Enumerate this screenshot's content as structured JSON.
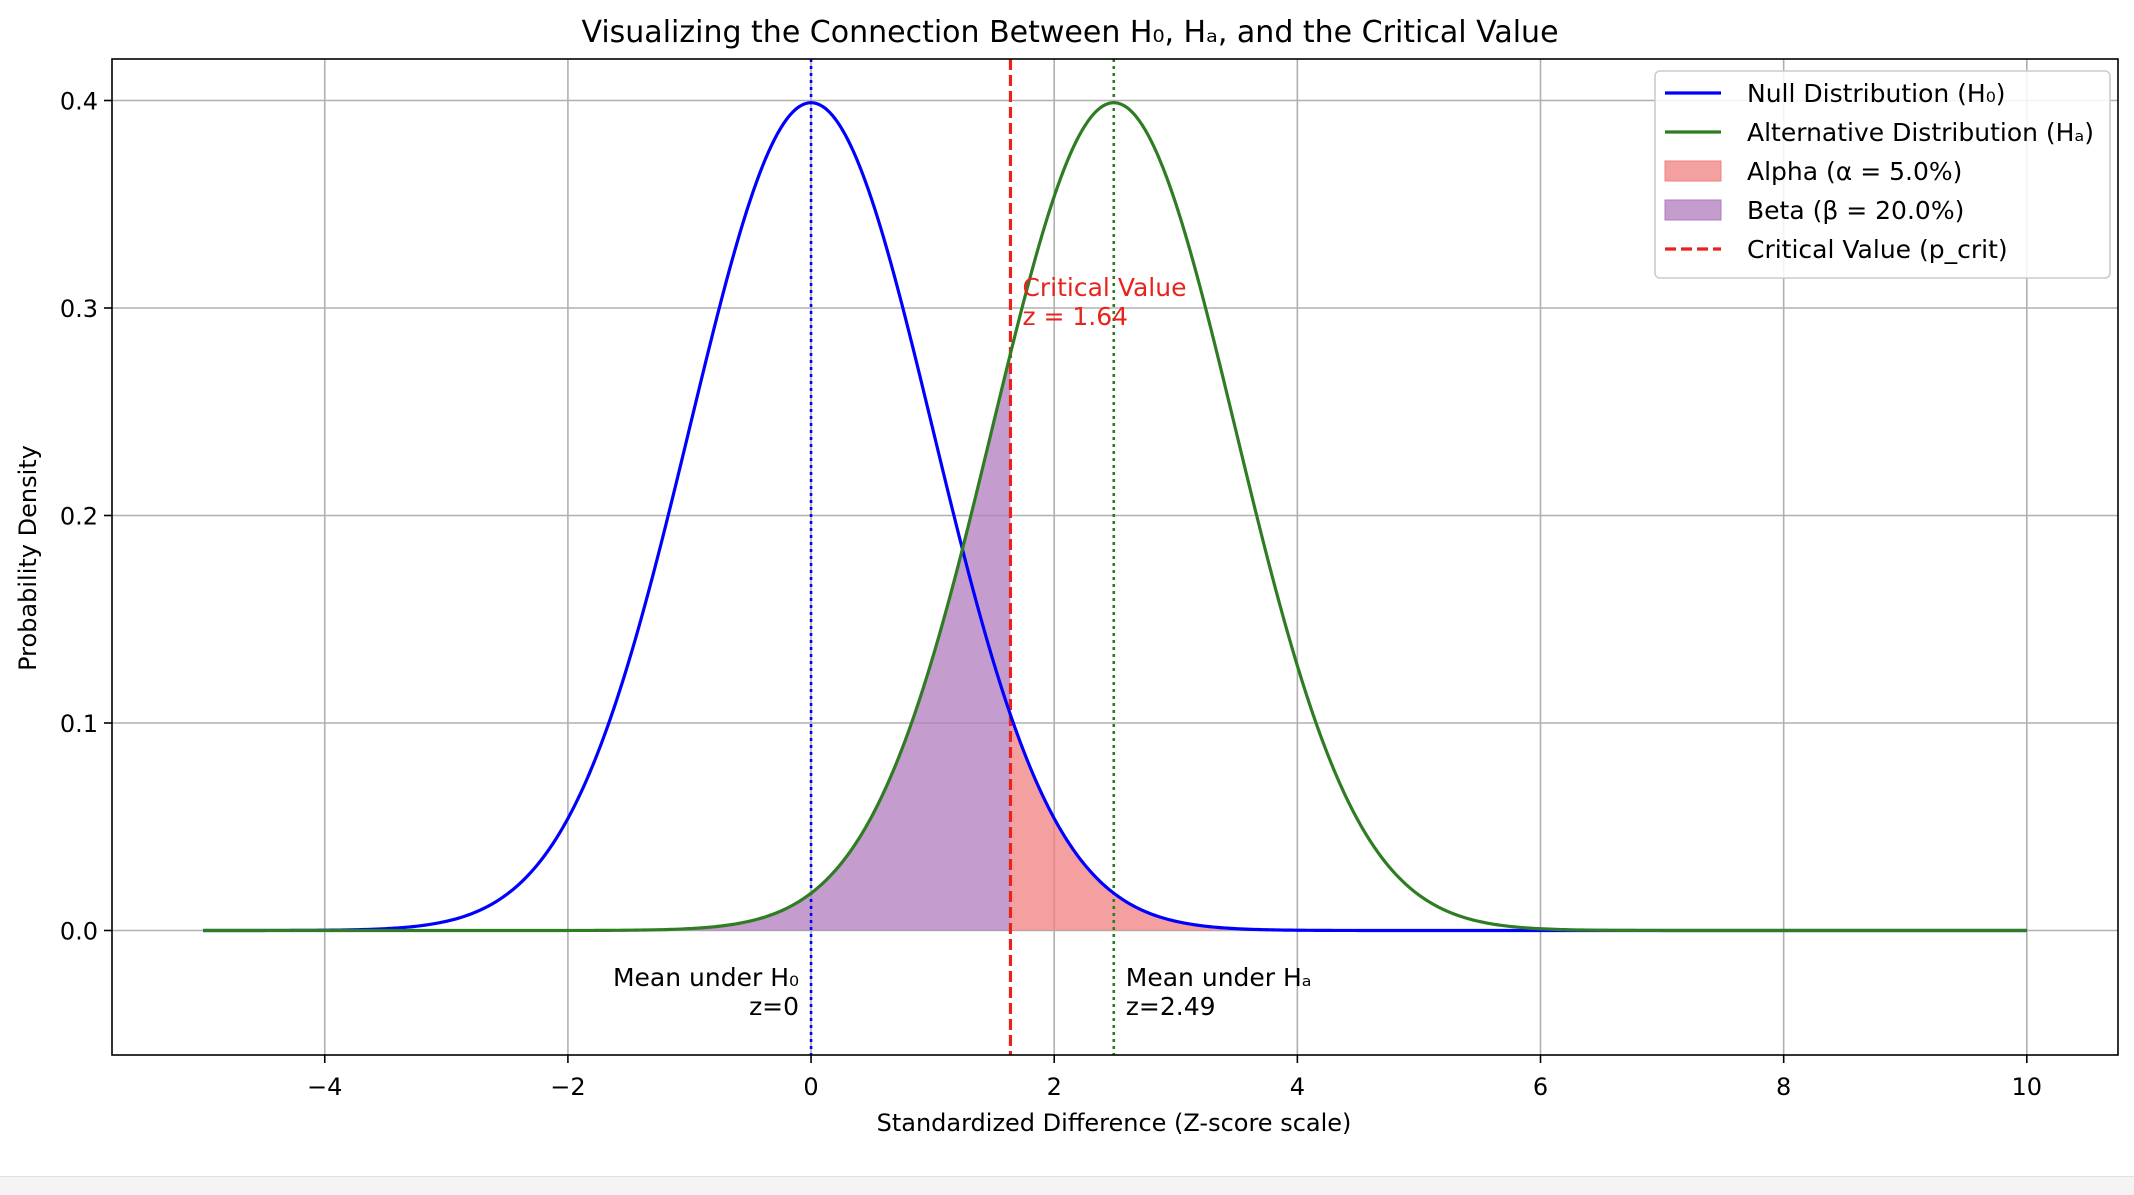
{
  "chart_data": {
    "type": "line",
    "title": "Visualizing the Connection Between H₀, Hₐ, and the Critical Value",
    "xlabel": "Standardized Difference (Z-score scale)",
    "ylabel": "Probability Density",
    "xlim": [
      -5.75,
      10.75
    ],
    "ylim": [
      -0.06,
      0.42
    ],
    "x_domain": [
      -5,
      10
    ],
    "xticks": [
      -4,
      -2,
      0,
      2,
      4,
      6,
      8,
      10
    ],
    "xtick_labels": [
      "−4",
      "−2",
      "0",
      "2",
      "4",
      "6",
      "8",
      "10"
    ],
    "yticks": [
      0.0,
      0.1,
      0.2,
      0.3,
      0.4
    ],
    "ytick_labels": [
      "0.0",
      "0.1",
      "0.2",
      "0.3",
      "0.4"
    ],
    "grid": true,
    "series": [
      {
        "name": "Null Distribution (H₀)",
        "kind": "normal_pdf",
        "mean": 0,
        "sd": 1,
        "color": "#0000ff"
      },
      {
        "name": "Alternative Distribution (Hₐ)",
        "kind": "normal_pdf",
        "mean": 2.49,
        "sd": 1,
        "color": "#2e7d22"
      }
    ],
    "shaded_regions": [
      {
        "name": "Alpha (α = 5.0%)",
        "under": "Null Distribution (H₀)",
        "from": 1.64,
        "to": 10,
        "color": "#f08080",
        "opacity": 0.75
      },
      {
        "name": "Beta (β = 20.0%)",
        "under": "Alternative Distribution (Hₐ)",
        "from": -5,
        "to": 1.64,
        "color": "#b07cbd",
        "opacity": 0.75
      }
    ],
    "vlines": [
      {
        "name": "Critical Value (p_crit)",
        "x": 1.64,
        "color": "#e8231d",
        "style": "dashed",
        "in_legend": true
      },
      {
        "name": "Mean under H₀",
        "x": 0,
        "color": "#0000ff",
        "style": "dotted",
        "in_legend": false
      },
      {
        "name": "Mean under Hₐ",
        "x": 2.49,
        "color": "#2e7d22",
        "style": "dotted",
        "in_legend": false
      }
    ],
    "annotations": [
      {
        "id": "critical",
        "lines": [
          "Critical Value",
          "z = 1.64"
        ],
        "x": 1.64,
        "y": 0.3,
        "color": "#e8231d",
        "align": "left"
      },
      {
        "id": "mean-null",
        "lines": [
          "Mean under H₀",
          "z=0"
        ],
        "x": 0,
        "y": -0.03,
        "color": "#000000",
        "align": "right"
      },
      {
        "id": "mean-alt",
        "lines": [
          "Mean under Hₐ",
          "z=2.49"
        ],
        "x": 2.49,
        "y": -0.03,
        "color": "#000000",
        "align": "left"
      }
    ],
    "legend": {
      "position": "top-right",
      "entries": [
        {
          "label": "Null Distribution (H₀)",
          "kind": "line",
          "color": "#0000ff"
        },
        {
          "label": "Alternative Distribution (Hₐ)",
          "kind": "line",
          "color": "#2e7d22"
        },
        {
          "label": "Alpha (α = 5.0%)",
          "kind": "patch",
          "color": "#f08080"
        },
        {
          "label": "Beta (β = 20.0%)",
          "kind": "patch",
          "color": "#b07cbd"
        },
        {
          "label": "Critical Value (p_crit)",
          "kind": "dashed",
          "color": "#e8231d"
        }
      ]
    }
  }
}
